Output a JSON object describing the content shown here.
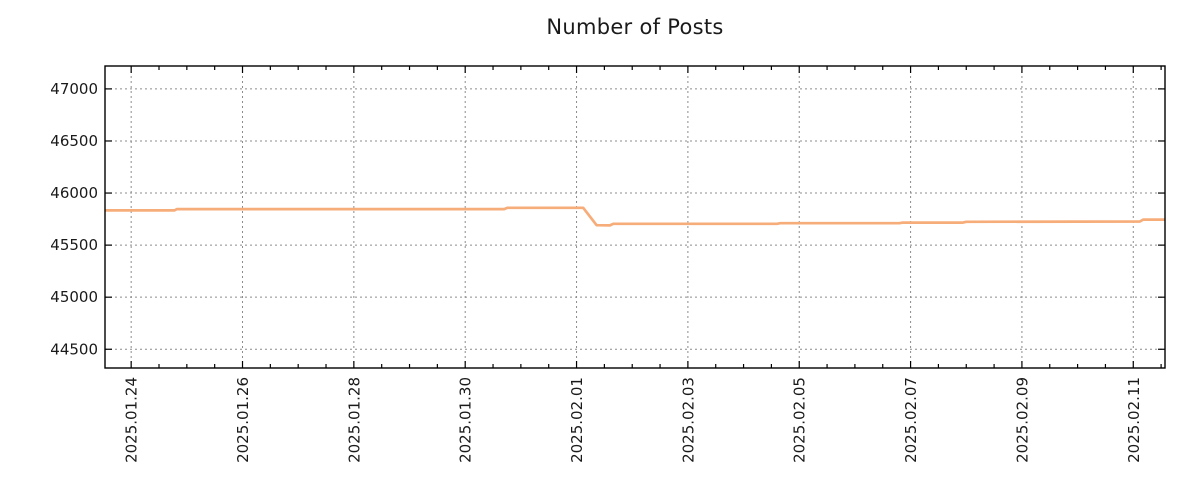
{
  "chart_data": {
    "type": "line",
    "title": "Number of Posts",
    "xlabel": "",
    "ylabel": "",
    "x_unit": "days since 2025-01-24 00:00",
    "xlim": [
      -0.47,
      18.57
    ],
    "ylim": [
      44320,
      47220
    ],
    "grid": true,
    "legend": "none",
    "x_ticks": [
      {
        "t": 0,
        "label": "2025.01.24"
      },
      {
        "t": 2,
        "label": "2025.01.26"
      },
      {
        "t": 4,
        "label": "2025.01.28"
      },
      {
        "t": 6,
        "label": "2025.01.30"
      },
      {
        "t": 8,
        "label": "2025.02.01"
      },
      {
        "t": 10,
        "label": "2025.02.03"
      },
      {
        "t": 12,
        "label": "2025.02.05"
      },
      {
        "t": 14,
        "label": "2025.02.07"
      },
      {
        "t": 16,
        "label": "2025.02.09"
      },
      {
        "t": 18,
        "label": "2025.02.11"
      }
    ],
    "x_minor_tick_step": 0.5,
    "y_ticks": [
      44500,
      45000,
      45500,
      46000,
      46500,
      47000
    ],
    "series": [
      {
        "name": "number-of-posts",
        "color": "#f7ad7a",
        "points": [
          [
            -0.47,
            45833
          ],
          [
            0.78,
            45833
          ],
          [
            0.82,
            45846
          ],
          [
            6.7,
            45846
          ],
          [
            6.76,
            45858
          ],
          [
            8.12,
            45858
          ],
          [
            8.36,
            45691
          ],
          [
            8.6,
            45689
          ],
          [
            8.66,
            45705
          ],
          [
            11.6,
            45705
          ],
          [
            11.66,
            45710
          ],
          [
            13.8,
            45710
          ],
          [
            13.86,
            45716
          ],
          [
            14.94,
            45716
          ],
          [
            15.0,
            45724
          ],
          [
            18.12,
            45727
          ],
          [
            18.18,
            45745
          ],
          [
            18.57,
            45745
          ]
        ]
      }
    ],
    "colors": {
      "grid": "#8c8c8c",
      "frame": "#000000",
      "tick_text": "#1a1a1a",
      "background": "#ffffff"
    }
  }
}
